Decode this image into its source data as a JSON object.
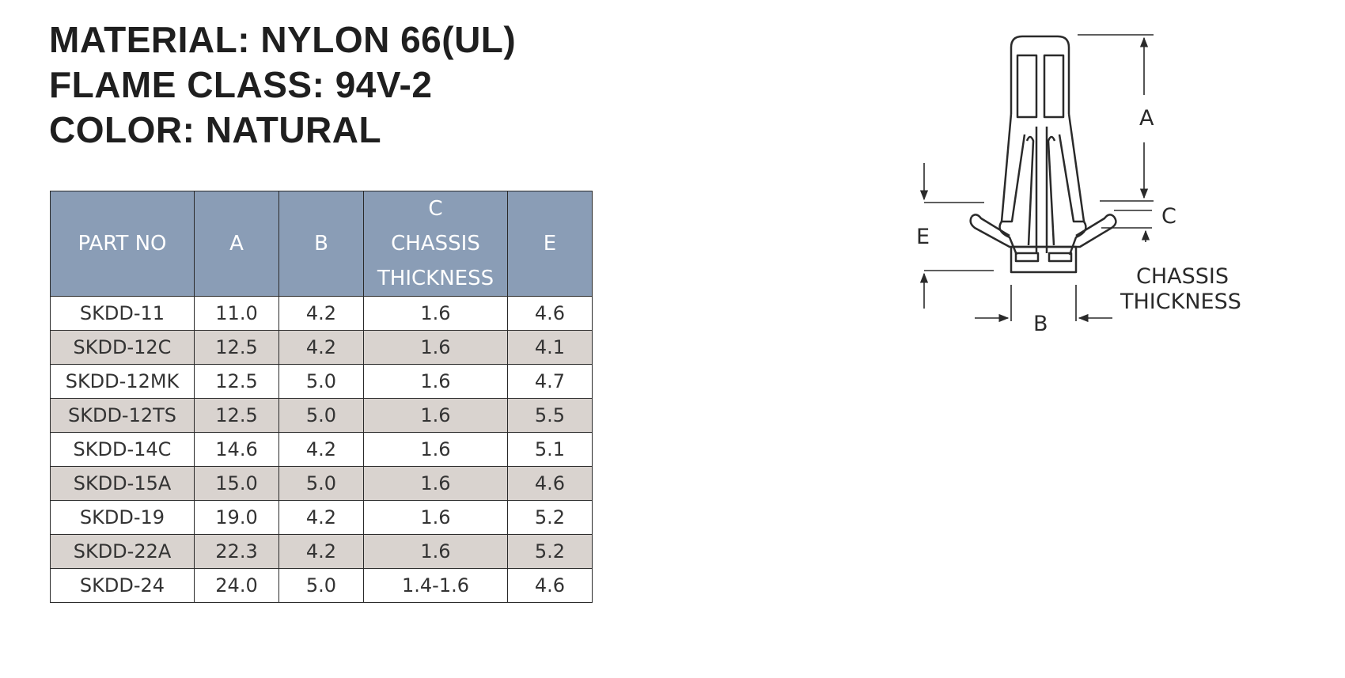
{
  "specs": {
    "material": "MATERIAL: NYLON 66(UL)",
    "flame_class": "FLAME CLASS: 94V-2",
    "color": "COLOR: NATURAL"
  },
  "table": {
    "headers": {
      "part_no": "PART NO",
      "a": "A",
      "b": "B",
      "c_line1": "C",
      "c_line2": "CHASSIS",
      "c_line3": "THICKNESS",
      "e": "E"
    },
    "rows": [
      {
        "part_no": "SKDD-11",
        "a": "11.0",
        "b": "4.2",
        "c": "1.6",
        "e": "4.6"
      },
      {
        "part_no": "SKDD-12C",
        "a": "12.5",
        "b": "4.2",
        "c": "1.6",
        "e": "4.1"
      },
      {
        "part_no": "SKDD-12MK",
        "a": "12.5",
        "b": "5.0",
        "c": "1.6",
        "e": "4.7"
      },
      {
        "part_no": "SKDD-12TS",
        "a": "12.5",
        "b": "5.0",
        "c": "1.6",
        "e": "5.5"
      },
      {
        "part_no": "SKDD-14C",
        "a": "14.6",
        "b": "4.2",
        "c": "1.6",
        "e": "5.1"
      },
      {
        "part_no": "SKDD-15A",
        "a": "15.0",
        "b": "5.0",
        "c": "1.6",
        "e": "4.6"
      },
      {
        "part_no": "SKDD-19",
        "a": "19.0",
        "b": "4.2",
        "c": "1.6",
        "e": "5.2"
      },
      {
        "part_no": "SKDD-22A",
        "a": "22.3",
        "b": "4.2",
        "c": "1.6",
        "e": "5.2"
      },
      {
        "part_no": "SKDD-24",
        "a": "24.0",
        "b": "5.0",
        "c": "1.4-1.6",
        "e": "4.6"
      }
    ]
  },
  "diagram": {
    "label_a": "A",
    "label_b": "B",
    "label_c": "C",
    "label_e": "E",
    "label_chassis": "CHASSIS",
    "label_thickness": "THICKNESS"
  },
  "colors": {
    "header_bg": "#8a9db6",
    "stripe_bg": "#d9d3cf",
    "text": "#1f1f1f"
  }
}
